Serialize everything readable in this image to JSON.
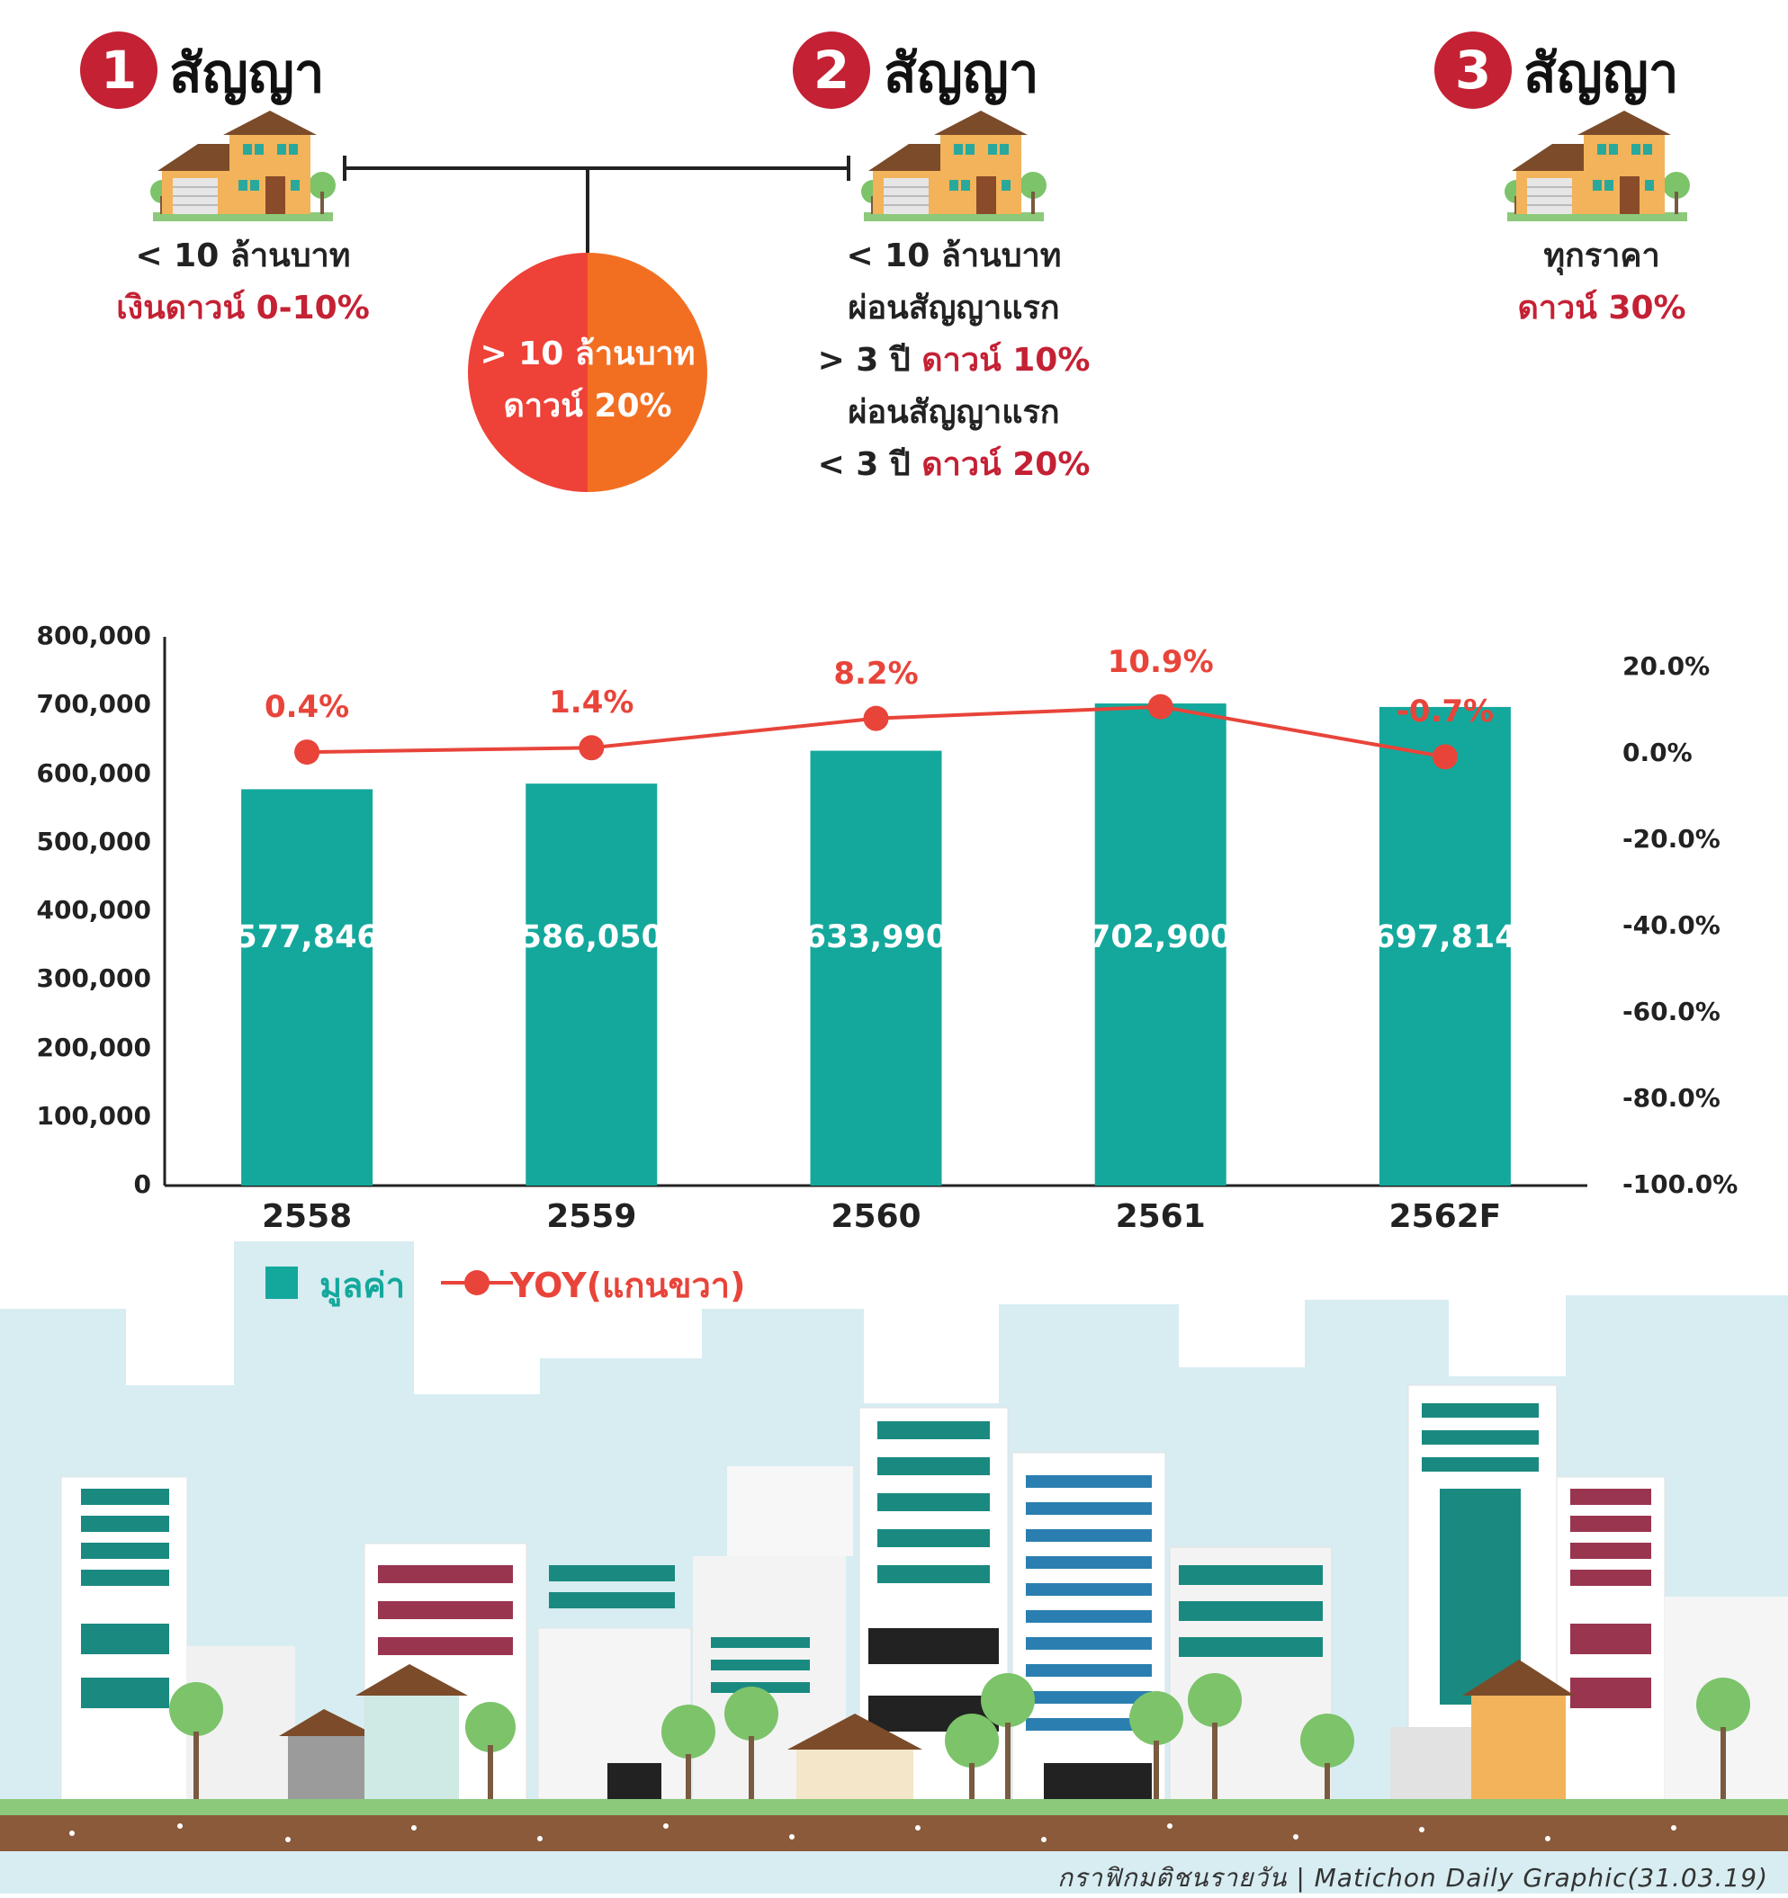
{
  "colors": {
    "accent_red": "#c42134",
    "bar_teal": "#14a89c",
    "line_red": "#e8443a",
    "pie_left": "#ee4138",
    "pie_right": "#f26f22",
    "ground_brown": "#8a5a3a",
    "grass_green": "#8cc97a"
  },
  "top": {
    "steps": [
      {
        "number": "1",
        "headline": "สัญญา",
        "line1": "< 10 ล้านบาท",
        "line2": "เงินดาวน์ 0-10%",
        "icon": "house-icon"
      },
      {
        "number": "2",
        "headline": "สัญญา",
        "line1": "< 10 ล้านบาท",
        "line2": "ผ่อนสัญญาแรก",
        "line3_prefix": "> 3 ปี ",
        "line3_value": "ดาวน์ 10%",
        "line4": "ผ่อนสัญญาแรก",
        "line5_prefix": "< 3 ปี ",
        "line5_value": "ดาวน์ 20%",
        "icon": "house-icon"
      },
      {
        "number": "3",
        "headline": "สัญญา",
        "line1": "ทุกราคา",
        "line2": "ดาวน์ 30%",
        "icon": "house-icon"
      }
    ],
    "circle": {
      "line1": "> 10 ล้านบาท",
      "line2": "ดาวน์ 20%"
    }
  },
  "chart_data": {
    "type": "bar",
    "categories": [
      "2558",
      "2559",
      "2560",
      "2561",
      "2562F"
    ],
    "series": [
      {
        "name": "มูลค่า",
        "type": "bar",
        "axis": "left",
        "values": [
          577846,
          586050,
          633990,
          702900,
          697814
        ],
        "labels": [
          "577,846",
          "586,050",
          "633,990",
          "702,900",
          "697,814"
        ]
      },
      {
        "name": "YOY(แกนขวา)",
        "type": "line",
        "axis": "right",
        "values": [
          0.4,
          1.4,
          8.2,
          10.9,
          -0.7
        ],
        "labels": [
          "0.4%",
          "1.4%",
          "8.2%",
          "10.9%",
          "-0.7%"
        ]
      }
    ],
    "y_left": {
      "range": [
        0,
        800000
      ],
      "ticks": [
        "800,000",
        "700,000",
        "600,000",
        "500,000",
        "400,000",
        "300,000",
        "200,000",
        "100,000",
        "0"
      ]
    },
    "y_right": {
      "range": [
        -100,
        25
      ],
      "ticks": [
        "20.0%",
        "0.0%",
        "-20.0%",
        "-40.0%",
        "-60.0%",
        "-80.0%",
        "-100.0%"
      ]
    },
    "grid": false,
    "legend": "bottom-left"
  },
  "legend": {
    "bar_label": "มูลค่า",
    "line_label": "YOY(แกนขวา)"
  },
  "credit": "กราฟิกมติชนรายวัน | Matichon  Daily  Graphic(31.03.19)"
}
